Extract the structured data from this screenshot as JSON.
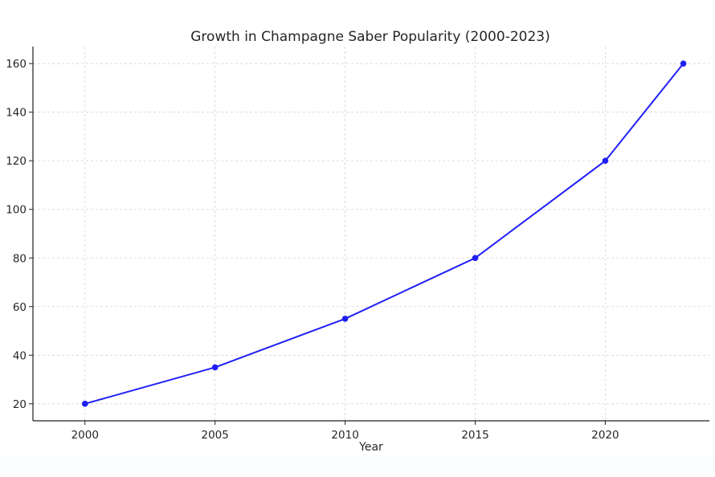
{
  "chart_data": {
    "type": "line",
    "title": "Growth in Champagne Saber Popularity (2000-2023)",
    "xlabel": "Year",
    "ylabel": "",
    "x": [
      2000,
      2005,
      2010,
      2015,
      2020,
      2023
    ],
    "series": [
      {
        "values": [
          20,
          35,
          55,
          80,
          120,
          160
        ],
        "color": "#1f1ff5",
        "marker": "circle"
      }
    ],
    "xlim": [
      1998,
      2024
    ],
    "ylim": [
      13,
      167
    ],
    "x_ticks": [
      2000,
      2005,
      2010,
      2015,
      2020
    ],
    "y_ticks": [
      20,
      40,
      60,
      80,
      100,
      120,
      140,
      160
    ],
    "grid": true,
    "legend": "none"
  }
}
